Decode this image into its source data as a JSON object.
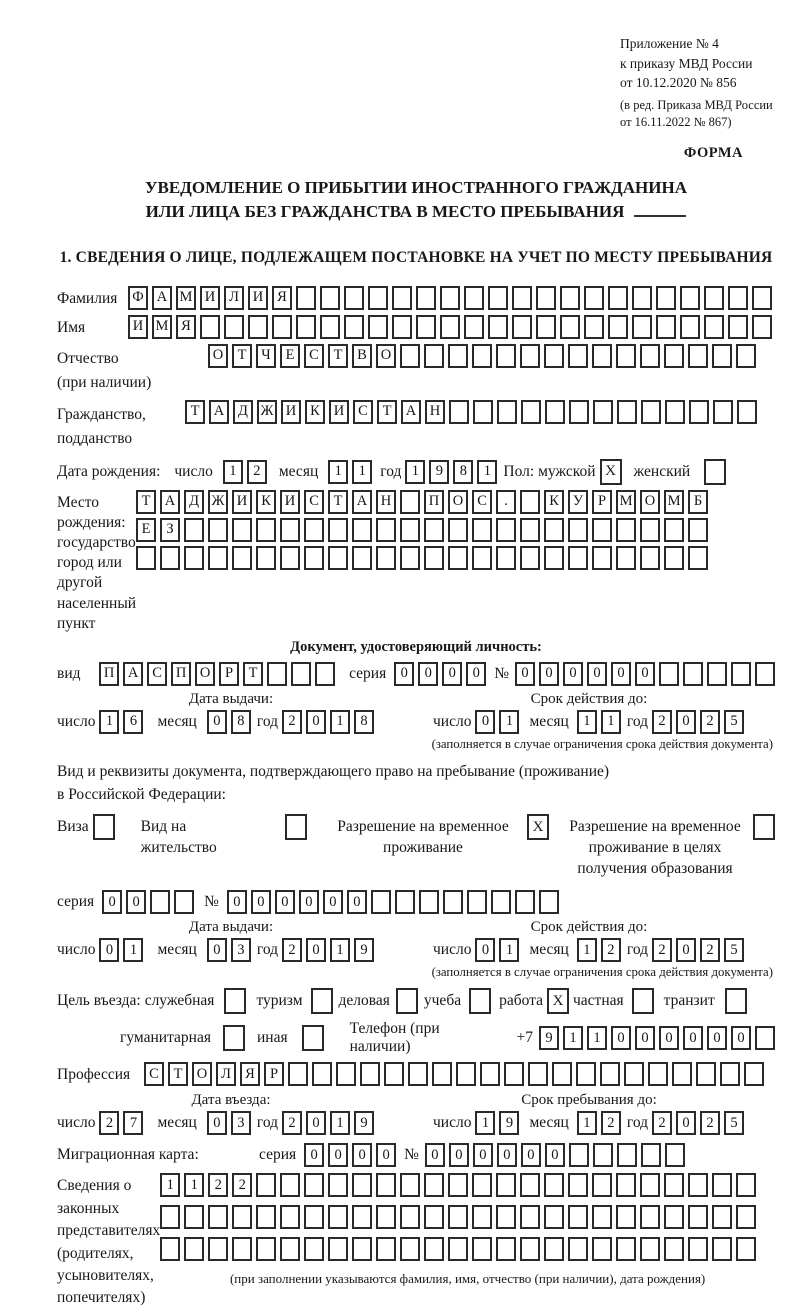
{
  "header": {
    "appendix": "Приложение № 4",
    "order_line1": "к приказу МВД России",
    "order_line2": "от 10.12.2020 № 856",
    "edit_line1": "(в ред. Приказа МВД России",
    "edit_line2": "от 16.11.2022 № 867)",
    "form_label": "ФОРМА"
  },
  "title": {
    "line1": "УВЕДОМЛЕНИЕ О ПРИБЫТИИ ИНОСТРАННОГО ГРАЖДАНИНА",
    "line2": "ИЛИ ЛИЦА БЕЗ ГРАЖДАНСТВА В МЕСТО ПРЕБЫВАНИЯ"
  },
  "section1_heading": "1. СВЕДЕНИЯ О ЛИЦЕ, ПОДЛЕЖАЩЕМ ПОСТАНОВКЕ НА УЧЕТ ПО МЕСТУ ПРЕБЫВАНИЯ",
  "labels": {
    "day": "число",
    "month": "месяц",
    "year": "год",
    "seriya": "серия",
    "number": "№",
    "issue_date": "Дата выдачи:",
    "valid_until": "Срок действия до:",
    "validity_note": "(заполняется в случае ограничения срока действия документа)"
  },
  "surname": {
    "label": "Фамилия",
    "boxes": {
      "value": "ФАМИЛИЯ",
      "cells": 27
    }
  },
  "firstname": {
    "label": "Имя",
    "boxes": {
      "value": "ИМЯ",
      "cells": 27
    }
  },
  "patronymic": {
    "label1": "Отчество",
    "label2": "(при наличии)",
    "boxes": {
      "value": "ОТЧЕСТВО",
      "cells": 23
    }
  },
  "citizenship": {
    "label1": "Гражданство,",
    "label2": "подданство",
    "boxes": {
      "value": "ТАДЖИКИСТАН",
      "cells": 24
    }
  },
  "birthdate": {
    "label": "Дата рождения:",
    "day": {
      "value": "12",
      "cells": 2
    },
    "month": {
      "value": "11",
      "cells": 2
    },
    "year": {
      "value": "1981",
      "cells": 4
    },
    "gender_label": "Пол: мужской",
    "male": {
      "checked": true
    },
    "female_label": "женский",
    "female": {
      "checked": false
    }
  },
  "birthplace": {
    "label1": "Место рождения:",
    "label2": "государство",
    "label3": "город или другой",
    "label4": "населенный пункт",
    "row1": {
      "value": "ТАДЖИКИСТАН ПОС. КУРМОМБ",
      "cells": 24
    },
    "row2": {
      "value": "ЕЗ",
      "cells": 24
    },
    "row3": {
      "value": "",
      "cells": 24
    }
  },
  "identity_doc": {
    "heading": "Документ, удостоверяющий личность:",
    "kind_label": "вид",
    "kind": {
      "value": "ПАСПОРТ",
      "cells": 10
    },
    "seriya": {
      "value": "0000",
      "cells": 4
    },
    "number": {
      "value": "000000",
      "cells": 11
    },
    "issue": {
      "day": {
        "value": "16",
        "cells": 2
      },
      "month": {
        "value": "08",
        "cells": 2
      },
      "year": {
        "value": "2018",
        "cells": 4
      }
    },
    "until": {
      "day": {
        "value": "01",
        "cells": 2
      },
      "month": {
        "value": "11",
        "cells": 2
      },
      "year": {
        "value": "2025",
        "cells": 4
      }
    }
  },
  "residence_doc": {
    "intro1": "Вид и реквизиты документа, подтверждающего право на пребывание (проживание)",
    "intro2": "в Российской Федерации:",
    "options": [
      {
        "label": "Виза",
        "checked": false
      },
      {
        "label": "Вид на жительство",
        "checked": false
      },
      {
        "label": "Разрешение на временное\nпроживание",
        "checked": true
      },
      {
        "label": "Разрешение на временное\nпроживание в целях\nполучения образования",
        "checked": false
      }
    ],
    "seriya": {
      "value": "00",
      "cells": 4
    },
    "number": {
      "value": "000000",
      "cells": 14
    },
    "issue": {
      "day": {
        "value": "01",
        "cells": 2
      },
      "month": {
        "value": "03",
        "cells": 2
      },
      "year": {
        "value": "2019",
        "cells": 4
      }
    },
    "until": {
      "day": {
        "value": "01",
        "cells": 2
      },
      "month": {
        "value": "12",
        "cells": 2
      },
      "year": {
        "value": "2025",
        "cells": 4
      }
    }
  },
  "visit": {
    "label": "Цель въезда:",
    "purposes": [
      {
        "label": "служебная",
        "checked": false
      },
      {
        "label": "туризм",
        "checked": false
      },
      {
        "label": "деловая",
        "checked": false
      },
      {
        "label": "учеба",
        "checked": false
      },
      {
        "label": "работа",
        "checked": true
      },
      {
        "label": "частная",
        "checked": false
      },
      {
        "label": "транзит",
        "checked": false
      },
      {
        "label": "гуманитарная",
        "checked": false
      },
      {
        "label": "иная",
        "checked": false
      }
    ],
    "phone_label": "Телефон (при наличии)",
    "phone_prefix": "+7",
    "phone": {
      "value": "911000000",
      "cells": 10
    }
  },
  "profession": {
    "label": "Профессия",
    "boxes": {
      "value": "СТОЛЯР",
      "cells": 26
    }
  },
  "entry": {
    "date_label": "Дата въезда:",
    "until_label": "Срок пребывания до:",
    "date": {
      "day": {
        "value": "27",
        "cells": 2
      },
      "month": {
        "value": "03",
        "cells": 2
      },
      "year": {
        "value": "2019",
        "cells": 4
      }
    },
    "until": {
      "day": {
        "value": "19",
        "cells": 2
      },
      "month": {
        "value": "12",
        "cells": 2
      },
      "year": {
        "value": "2025",
        "cells": 4
      }
    }
  },
  "migration_card": {
    "label": "Миграционная карта:",
    "seriya": {
      "value": "0000",
      "cells": 4
    },
    "number": {
      "value": "000000",
      "cells": 11
    }
  },
  "representatives": {
    "label_lines": "Сведения о\nзаконных\nпредставителях\n(родителях,\nусыновителях,\nпопечителях)",
    "row1": {
      "value": "1122",
      "cells": 25
    },
    "row2": {
      "value": "",
      "cells": 25
    },
    "row3": {
      "value": "",
      "cells": 25
    },
    "note": "(при заполнении указываются фамилия, имя, отчество (при наличии), дата рождения)"
  }
}
